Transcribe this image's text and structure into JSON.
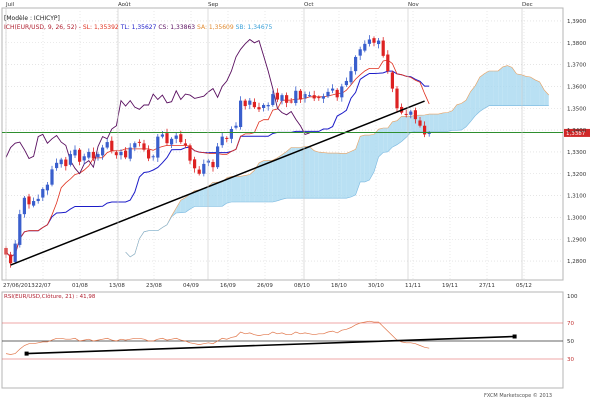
{
  "chart_data": [
    {
      "type": "candlestick",
      "instrument": "ICHICYP",
      "months": [
        "Juil",
        "Août",
        "Sep",
        "Oct",
        "Nov",
        "Dec"
      ],
      "header": {
        "line1": "[Modèle : ICHICYP]",
        "line2_prefix": "ICH(EUR/USD, 9, 26, 52) - ",
        "sl": "SL: 1,35392",
        "tl": "TL: 1,35627",
        "cs": "CS: 1,33863",
        "sa": "SA: 1,35609",
        "sb": "SB: 1,34675"
      },
      "x_tick_labels": [
        "27/06/2013",
        "22/07",
        "01/08",
        "13/08",
        "23/08",
        "04/09",
        "16/09",
        "26/09",
        "08/10",
        "18/10",
        "30/10",
        "11/11",
        "19/11",
        "27/11",
        "05/12"
      ],
      "y_tick_labels": [
        "1,3900",
        "1,3800",
        "1,3700",
        "1,3600",
        "1,3500",
        "1,3400",
        "1,3300",
        "1,3200",
        "1,3100",
        "1,3000",
        "1,2900",
        "1,2800"
      ],
      "ylim": [
        1.275,
        1.395
      ],
      "current_price_label": "1,3387",
      "horizontal_level": 1.3389,
      "trendline": {
        "from": {
          "bar": 1,
          "price": 1.2782
        },
        "to": {
          "bar": 91,
          "price": 1.3533
        }
      },
      "series": {
        "close": [
          1.283,
          1.279,
          1.288,
          1.3015,
          1.309,
          1.306,
          1.3075,
          1.3085,
          1.313,
          1.315,
          1.322,
          1.325,
          1.3265,
          1.3235,
          1.329,
          1.331,
          1.3255,
          1.328,
          1.33,
          1.327,
          1.329,
          1.332,
          1.3345,
          1.3305,
          1.3285,
          1.33,
          1.3275,
          1.332,
          1.334,
          1.3345,
          1.331,
          1.327,
          1.328,
          1.337,
          1.338,
          1.334,
          1.336,
          1.3375,
          1.3345,
          1.333,
          1.326,
          1.3225,
          1.32,
          1.3245,
          1.326,
          1.323,
          1.3325,
          1.337,
          1.336,
          1.3405,
          1.342,
          1.3535,
          1.351,
          1.3535,
          1.3505,
          1.3495,
          1.3515,
          1.3515,
          1.3565,
          1.354,
          1.356,
          1.3525,
          1.353,
          1.358,
          1.354,
          1.3565,
          1.356,
          1.3545,
          1.355,
          1.3555,
          1.3575,
          1.359,
          1.355,
          1.36,
          1.3625,
          1.367,
          1.3735,
          1.377,
          1.3795,
          1.3815,
          1.38,
          1.381,
          1.374,
          1.367,
          1.359,
          1.35,
          1.348,
          1.347,
          1.3485,
          1.345,
          1.342,
          1.338,
          1.3387
        ],
        "colors": {
          "up": "#3a5fcd",
          "down": "#dd2222",
          "tenkan": "#e0301e",
          "kijun": "#1c1cc8",
          "chikou": "#5a1060",
          "cloud_bull": "#a8d8f0",
          "cloud_bear": "#f5c9a0",
          "trendline": "#000000",
          "level": "#2f8f2f"
        }
      }
    },
    {
      "type": "line",
      "title": "RSI(EUR/USD,Clôture, 21) : 41,98",
      "y_tick_labels": [
        "100",
        "70",
        "50",
        "30"
      ],
      "ylim": [
        0,
        100
      ],
      "levels": [
        70,
        50,
        30
      ],
      "values": [
        36,
        35,
        36,
        41,
        45,
        47,
        47,
        48,
        49,
        49,
        51,
        53,
        53,
        52,
        52,
        53,
        50,
        51,
        52,
        50,
        51,
        52,
        53,
        51,
        50,
        52,
        51,
        52,
        53,
        53,
        52,
        50,
        50,
        52,
        53,
        51,
        52,
        53,
        51,
        50,
        48,
        47,
        46,
        47,
        48,
        47,
        50,
        53,
        52,
        54,
        55,
        60,
        58,
        59,
        57,
        56,
        57,
        57,
        60,
        58,
        59,
        57,
        57,
        60,
        58,
        59,
        58,
        57,
        58,
        58,
        60,
        61,
        59,
        62,
        63,
        65,
        68,
        70,
        71,
        72,
        71,
        71,
        66,
        61,
        56,
        51,
        49,
        48,
        48,
        47,
        45,
        43,
        41.98
      ],
      "trendline": {
        "from": {
          "bar": 1,
          "value": 36
        },
        "to": {
          "bar": 91,
          "value": 55
        }
      },
      "footer": "FXCM Marketscope © 2013"
    }
  ]
}
